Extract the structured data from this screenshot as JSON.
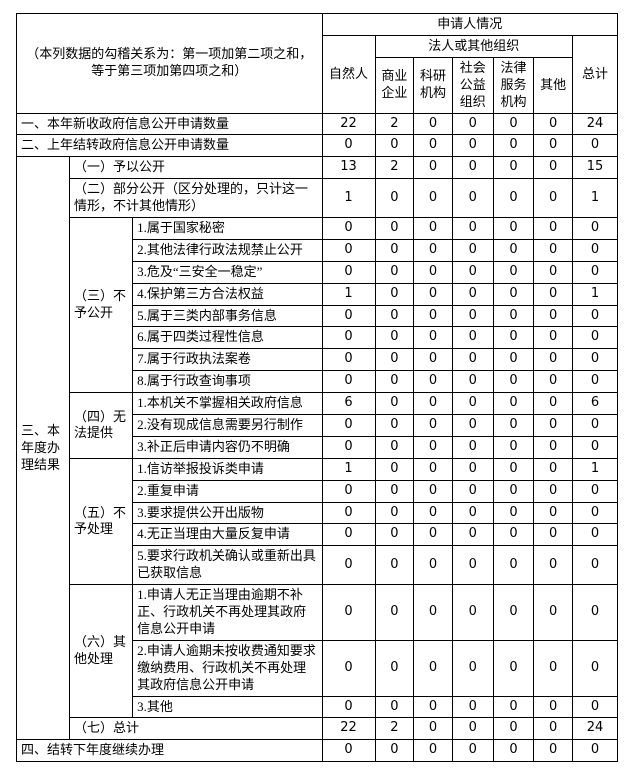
{
  "corner_note": "（本列数据的勾稽关系为：第一项加第二项之和，等于第三项加第四项之和）",
  "header": {
    "applicant": "申请人情况",
    "legal_or_other": "法人或其他组织",
    "natural_person": "自然人",
    "total": "总计",
    "org_columns": [
      "商业企业",
      "科研机构",
      "社会公益组织",
      "法律服务机构",
      "其他"
    ]
  },
  "rows": {
    "new_this_year": {
      "label": "一、本年新收政府信息公开申请数量",
      "values": [
        "22",
        "2",
        "0",
        "0",
        "0",
        "0",
        "24"
      ]
    },
    "carried_from_last_year": {
      "label": "二、上年结转政府信息公开申请数量",
      "values": [
        "0",
        "0",
        "0",
        "0",
        "0",
        "0",
        "0"
      ]
    },
    "next_year": {
      "label": "四、结转下年度继续办理",
      "values": [
        "0",
        "0",
        "0",
        "0",
        "0",
        "0",
        "0"
      ]
    }
  },
  "section3": {
    "label": "三、本年度办理结果",
    "granted": {
      "label": "（一）予以公开",
      "values": [
        "13",
        "2",
        "0",
        "0",
        "0",
        "0",
        "15"
      ]
    },
    "partial": {
      "label": "（二）部分公开（区分处理的，只计这一情形，不计其他情形）",
      "values": [
        "1",
        "0",
        "0",
        "0",
        "0",
        "0",
        "1"
      ]
    },
    "total_row": {
      "label": "（七）总计",
      "values": [
        "22",
        "2",
        "0",
        "0",
        "0",
        "0",
        "24"
      ]
    }
  },
  "groups": {
    "deny": {
      "label": "（三）不予公开",
      "items": [
        {
          "label": "1.属于国家秘密",
          "values": [
            "0",
            "0",
            "0",
            "0",
            "0",
            "0",
            "0"
          ]
        },
        {
          "label": "2.其他法律行政法规禁止公开",
          "values": [
            "0",
            "0",
            "0",
            "0",
            "0",
            "0",
            "0"
          ]
        },
        {
          "label": "3.危及“三安全一稳定”",
          "values": [
            "0",
            "0",
            "0",
            "0",
            "0",
            "0",
            "0"
          ]
        },
        {
          "label": "4.保护第三方合法权益",
          "values": [
            "1",
            "0",
            "0",
            "0",
            "0",
            "0",
            "1"
          ]
        },
        {
          "label": "5.属于三类内部事务信息",
          "values": [
            "0",
            "0",
            "0",
            "0",
            "0",
            "0",
            "0"
          ]
        },
        {
          "label": "6.属于四类过程性信息",
          "values": [
            "0",
            "0",
            "0",
            "0",
            "0",
            "0",
            "0"
          ]
        },
        {
          "label": "7.属于行政执法案卷",
          "values": [
            "0",
            "0",
            "0",
            "0",
            "0",
            "0",
            "0"
          ]
        },
        {
          "label": "8.属于行政查询事项",
          "values": [
            "0",
            "0",
            "0",
            "0",
            "0",
            "0",
            "0"
          ]
        }
      ]
    },
    "unable": {
      "label": "（四）无法提供",
      "items": [
        {
          "label": "1.本机关不掌握相关政府信息",
          "values": [
            "6",
            "0",
            "0",
            "0",
            "0",
            "0",
            "6"
          ]
        },
        {
          "label": "2.没有现成信息需要另行制作",
          "values": [
            "0",
            "0",
            "0",
            "0",
            "0",
            "0",
            "0"
          ]
        },
        {
          "label": "3.补正后申请内容仍不明确",
          "values": [
            "0",
            "0",
            "0",
            "0",
            "0",
            "0",
            "0"
          ]
        }
      ]
    },
    "no_process": {
      "label": "（五）不予处理",
      "items": [
        {
          "label": "1.信访举报投诉类申请",
          "values": [
            "1",
            "0",
            "0",
            "0",
            "0",
            "0",
            "1"
          ]
        },
        {
          "label": "2.重复申请",
          "values": [
            "0",
            "0",
            "0",
            "0",
            "0",
            "0",
            "0"
          ]
        },
        {
          "label": "3.要求提供公开出版物",
          "values": [
            "0",
            "0",
            "0",
            "0",
            "0",
            "0",
            "0"
          ]
        },
        {
          "label": "4.无正当理由大量反复申请",
          "values": [
            "0",
            "0",
            "0",
            "0",
            "0",
            "0",
            "0"
          ]
        },
        {
          "label": "5.要求行政机关确认或重新出具已获取信息",
          "values": [
            "0",
            "0",
            "0",
            "0",
            "0",
            "0",
            "0"
          ]
        }
      ]
    },
    "other_handle": {
      "label": "（六）其他处理",
      "items": [
        {
          "label": "1.申请人无正当理由逾期不补正、行政机关不再处理其政府信息公开申请",
          "values": [
            "0",
            "0",
            "0",
            "0",
            "0",
            "0",
            "0"
          ]
        },
        {
          "label": "2.申请人逾期未按收费通知要求缴纳费用、行政机关不再处理其政府信息公开申请",
          "values": [
            "0",
            "0",
            "0",
            "0",
            "0",
            "0",
            "0"
          ]
        },
        {
          "label": "3.其他",
          "values": [
            "0",
            "0",
            "0",
            "0",
            "0",
            "0",
            "0"
          ]
        }
      ]
    }
  }
}
